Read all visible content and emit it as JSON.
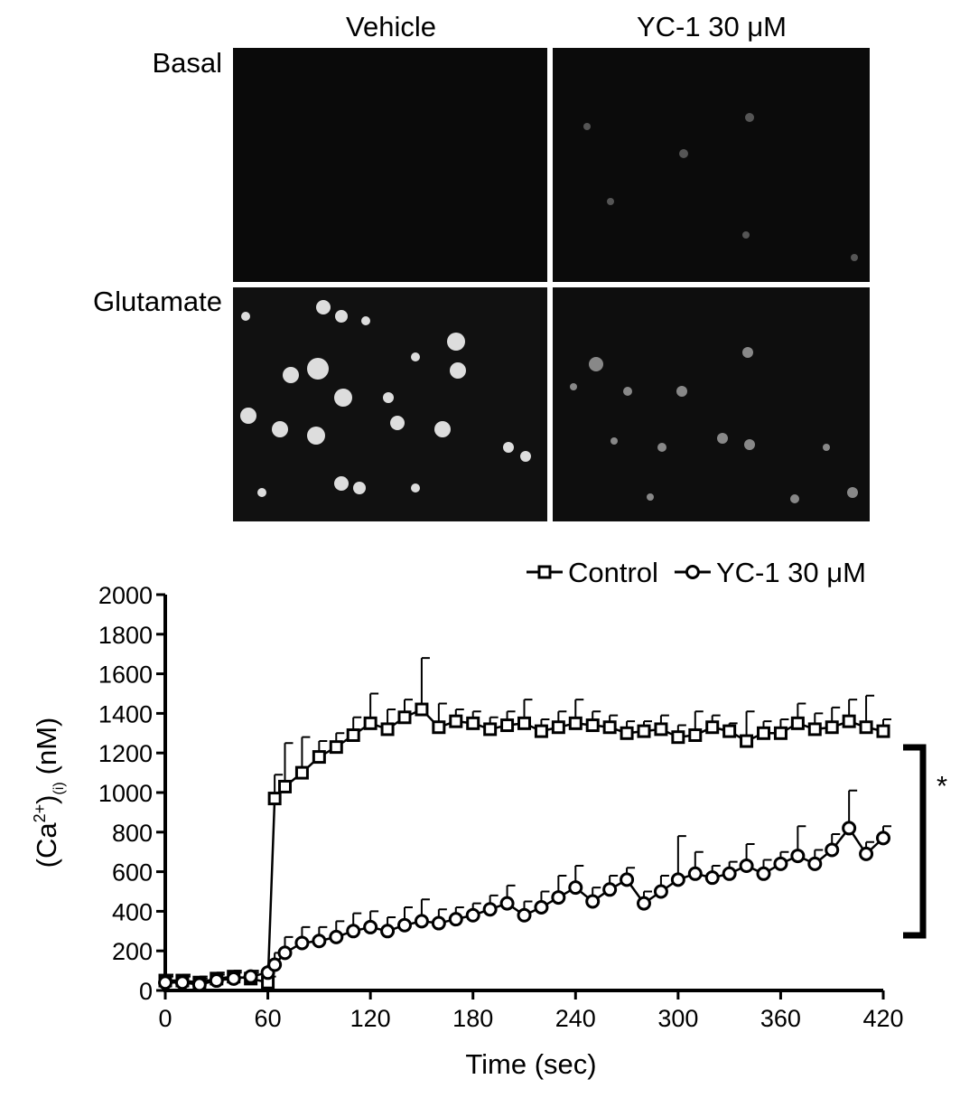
{
  "panels": {
    "columns": [
      "Vehicle",
      "YC-1 30 μM"
    ],
    "rows": [
      "Basal",
      "Glutamate"
    ]
  },
  "chart_data": {
    "type": "line",
    "xlabel": "Time (sec)",
    "ylabel": {
      "open": "(Ca",
      "sup": "2+",
      "close": ")",
      "sub": "(i)",
      "unit": "(nM)"
    },
    "annotation": "*",
    "x": [
      0,
      10,
      20,
      30,
      40,
      50,
      60,
      64,
      70,
      80,
      90,
      100,
      110,
      120,
      130,
      140,
      150,
      160,
      170,
      180,
      190,
      200,
      210,
      220,
      230,
      240,
      250,
      260,
      270,
      280,
      290,
      300,
      310,
      320,
      330,
      340,
      350,
      360,
      370,
      380,
      390,
      400,
      410,
      420
    ],
    "series": [
      {
        "name": "Control",
        "color": "#000000",
        "marker": "square",
        "values": [
          50,
          50,
          40,
          60,
          70,
          60,
          40,
          970,
          1030,
          1100,
          1180,
          1230,
          1290,
          1350,
          1320,
          1380,
          1420,
          1330,
          1360,
          1350,
          1320,
          1340,
          1350,
          1310,
          1330,
          1350,
          1340,
          1330,
          1300,
          1310,
          1320,
          1280,
          1290,
          1330,
          1310,
          1260,
          1300,
          1300,
          1350,
          1320,
          1330,
          1360,
          1330,
          1310
        ],
        "errors": [
          30,
          30,
          30,
          30,
          30,
          30,
          30,
          120,
          220,
          180,
          80,
          70,
          90,
          150,
          100,
          90,
          260,
          120,
          60,
          60,
          60,
          70,
          120,
          60,
          80,
          120,
          70,
          60,
          60,
          50,
          70,
          60,
          120,
          60,
          40,
          150,
          60,
          70,
          100,
          80,
          100,
          110,
          160,
          60
        ]
      },
      {
        "name": "YC-1 30 μM",
        "color": "#000000",
        "marker": "circle",
        "values": [
          40,
          40,
          30,
          50,
          60,
          70,
          90,
          130,
          190,
          240,
          250,
          270,
          300,
          320,
          300,
          330,
          350,
          340,
          360,
          380,
          410,
          440,
          380,
          420,
          470,
          520,
          450,
          510,
          560,
          440,
          500,
          560,
          590,
          570,
          590,
          630,
          590,
          640,
          680,
          640,
          710,
          820,
          690,
          770
        ],
        "errors": [
          30,
          30,
          30,
          30,
          30,
          30,
          40,
          60,
          80,
          80,
          70,
          80,
          90,
          80,
          70,
          90,
          110,
          70,
          60,
          60,
          70,
          90,
          70,
          80,
          110,
          110,
          70,
          70,
          60,
          60,
          80,
          220,
          110,
          60,
          60,
          110,
          70,
          60,
          150,
          70,
          80,
          190,
          60,
          60
        ]
      }
    ],
    "xlim": [
      0,
      420
    ],
    "xticks": [
      0,
      60,
      120,
      180,
      240,
      300,
      360,
      420
    ],
    "ylim": [
      0,
      2000
    ],
    "yticks": [
      0,
      200,
      400,
      600,
      800,
      1000,
      1200,
      1400,
      1600,
      1800,
      2000
    ],
    "legend": "top-right"
  }
}
